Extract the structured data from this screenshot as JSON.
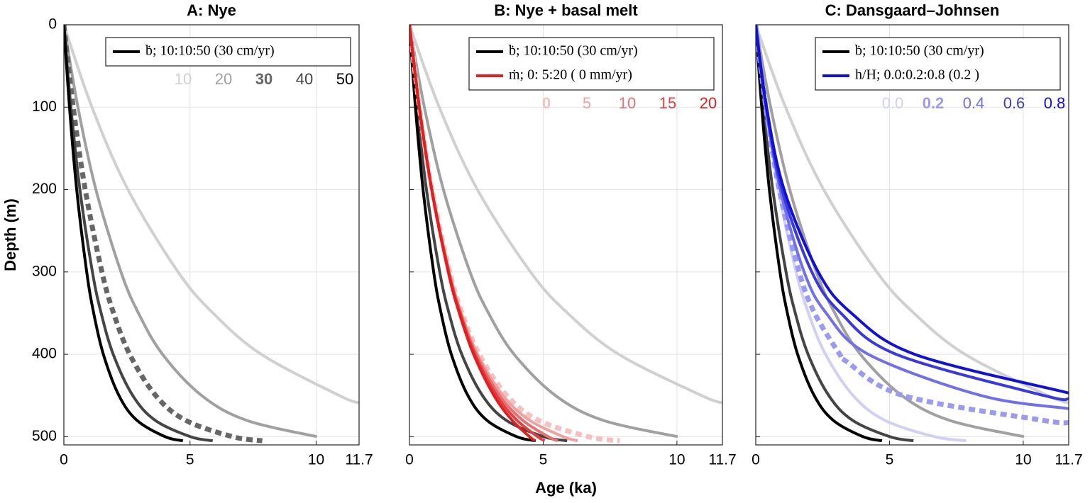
{
  "chart_data": [
    {
      "type": "line",
      "title": "A: Nye",
      "ylabel": "Depth (m)",
      "xlim": [
        0,
        11.7
      ],
      "ylim": [
        0,
        510
      ],
      "xticks": [
        0,
        5,
        10,
        11.7
      ],
      "yticks": [
        0,
        100,
        200,
        300,
        400,
        500
      ],
      "show_ytick_labels": true,
      "grid": true,
      "y_inverted": true,
      "legend": [
        {
          "label": "ḃ; 10:10:50 (30 cm/yr)",
          "color": "#000000"
        }
      ],
      "series": [
        {
          "name": "10",
          "color": "#d0d0d0",
          "dashed": false,
          "x": [
            0,
            1.113,
            2.539,
            4.525,
            5.912,
            7.823,
            10.915,
            11.7
          ],
          "values": [
            0,
            100,
            200,
            300,
            350,
            400,
            450,
            459
          ]
        },
        {
          "name": "20",
          "color": "#a0a0a0",
          "dashed": false,
          "x": [
            0,
            0.557,
            1.269,
            2.263,
            2.956,
            3.911,
            5.457,
            7.225,
            10.026
          ],
          "values": [
            0,
            100,
            200,
            300,
            350,
            400,
            450,
            480,
            500
          ]
        },
        {
          "name": "30",
          "color": "#666666",
          "dashed": true,
          "x": [
            0,
            0.371,
            0.846,
            1.508,
            1.971,
            2.608,
            3.638,
            4.816,
            6.684,
            7.863
          ],
          "values": [
            0,
            100,
            200,
            300,
            350,
            400,
            450,
            480,
            500,
            505
          ]
        },
        {
          "name": "40",
          "color": "#444444",
          "dashed": false,
          "x": [
            0,
            0.278,
            0.635,
            1.131,
            1.478,
            1.956,
            2.729,
            3.612,
            5.013,
            5.897
          ],
          "values": [
            0,
            100,
            200,
            300,
            350,
            400,
            450,
            480,
            500,
            505
          ]
        },
        {
          "name": "50",
          "color": "#000000",
          "dashed": false,
          "x": [
            0,
            0.223,
            0.508,
            0.905,
            1.182,
            1.565,
            2.183,
            2.89,
            4.01,
            4.718
          ],
          "values": [
            0,
            100,
            200,
            300,
            350,
            400,
            450,
            480,
            500,
            505
          ]
        }
      ]
    },
    {
      "type": "line",
      "title": "B: Nye + basal melt",
      "xlabel": "Age (ka)",
      "xlim": [
        0,
        11.7
      ],
      "ylim": [
        0,
        510
      ],
      "xticks": [
        0,
        5,
        10,
        11.7
      ],
      "yticks": [
        0,
        100,
        200,
        300,
        400,
        500
      ],
      "show_ytick_labels": false,
      "grid": true,
      "y_inverted": true,
      "legend": [
        {
          "label": "ḃ; 10:10:50 (30 cm/yr)",
          "color": "#000000"
        },
        {
          "label": "ṁ; 0: 5:20 ( 0 mm/yr)",
          "color": "#e02020"
        }
      ],
      "series": [
        {
          "color": "#d0d0d0",
          "dashed": false,
          "x": [
            0,
            1.113,
            2.539,
            4.525,
            5.912,
            7.823,
            10.915,
            11.7
          ],
          "values": [
            0,
            100,
            200,
            300,
            350,
            400,
            450,
            459
          ]
        },
        {
          "color": "#a0a0a0",
          "dashed": false,
          "x": [
            0,
            0.557,
            1.269,
            2.263,
            2.956,
            3.911,
            5.457,
            7.225,
            10.026
          ],
          "values": [
            0,
            100,
            200,
            300,
            350,
            400,
            450,
            480,
            500
          ]
        },
        {
          "color": "#444444",
          "dashed": false,
          "x": [
            0,
            0.278,
            0.635,
            1.131,
            1.478,
            1.956,
            2.729,
            3.612,
            5.013,
            5.897
          ],
          "values": [
            0,
            100,
            200,
            300,
            350,
            400,
            450,
            480,
            500,
            505
          ]
        },
        {
          "color": "#000000",
          "dashed": false,
          "x": [
            0,
            0.223,
            0.508,
            0.905,
            1.182,
            1.565,
            2.183,
            2.89,
            4.01,
            4.718
          ],
          "values": [
            0,
            100,
            200,
            300,
            350,
            400,
            450,
            480,
            500,
            505
          ]
        },
        {
          "name": "0",
          "color": "#f4c0c0",
          "dashed": true,
          "x": [
            0,
            0.371,
            0.846,
            1.508,
            1.971,
            2.608,
            3.638,
            4.816,
            6.684,
            7.863
          ],
          "values": [
            0,
            100,
            200,
            300,
            350,
            400,
            450,
            480,
            500,
            505
          ]
        },
        {
          "name": "5",
          "color": "#f0a0a0",
          "dashed": false,
          "x": [
            0,
            0.37,
            0.842,
            1.493,
            1.942,
            2.55,
            3.496,
            4.489,
            5.75,
            6.29
          ],
          "values": [
            0,
            100,
            200,
            300,
            350,
            400,
            450,
            480,
            500,
            505
          ]
        },
        {
          "name": "10",
          "color": "#e87070",
          "dashed": false,
          "x": [
            0,
            0.37,
            0.838,
            1.479,
            1.915,
            2.496,
            3.371,
            4.231,
            5.189,
            5.541
          ],
          "values": [
            0,
            100,
            200,
            300,
            350,
            400,
            450,
            480,
            500,
            505
          ]
        },
        {
          "name": "15",
          "color": "#e04040",
          "dashed": false,
          "x": [
            0,
            0.369,
            0.834,
            1.464,
            1.889,
            2.446,
            3.26,
            4.019,
            4.794,
            5.055
          ],
          "values": [
            0,
            100,
            200,
            300,
            350,
            400,
            450,
            480,
            500,
            505
          ]
        },
        {
          "name": "20",
          "color": "#e02020",
          "dashed": false,
          "x": [
            0,
            0.368,
            0.83,
            1.451,
            1.864,
            2.399,
            3.159,
            3.838,
            4.491,
            4.698
          ],
          "values": [
            0,
            100,
            200,
            300,
            350,
            400,
            450,
            480,
            500,
            505
          ]
        }
      ]
    },
    {
      "type": "line",
      "title": "C: Dansgaard–Johnsen",
      "xlim": [
        0,
        11.7
      ],
      "ylim": [
        0,
        510
      ],
      "xticks": [
        0,
        5,
        10,
        11.7
      ],
      "yticks": [
        0,
        100,
        200,
        300,
        400,
        500
      ],
      "show_ytick_labels": false,
      "grid": true,
      "y_inverted": true,
      "legend": [
        {
          "label": "ḃ; 10:10:50 (30 cm/yr)",
          "color": "#000000"
        },
        {
          "label": "h/H; 0.0:0.2:0.8 (0.2 )",
          "color": "#1010d8"
        }
      ],
      "series": [
        {
          "color": "#d0d0d0",
          "dashed": false,
          "x": [
            0,
            1.113,
            2.539,
            4.525,
            5.912,
            7.823,
            10.915,
            11.7
          ],
          "values": [
            0,
            100,
            200,
            300,
            350,
            400,
            450,
            459
          ]
        },
        {
          "color": "#a0a0a0",
          "dashed": false,
          "x": [
            0,
            0.557,
            1.269,
            2.263,
            2.956,
            3.911,
            5.457,
            7.225,
            10.026
          ],
          "values": [
            0,
            100,
            200,
            300,
            350,
            400,
            450,
            480,
            500
          ]
        },
        {
          "color": "#444444",
          "dashed": false,
          "x": [
            0,
            0.278,
            0.635,
            1.131,
            1.478,
            1.956,
            2.729,
            3.612,
            5.013,
            5.897
          ],
          "values": [
            0,
            100,
            200,
            300,
            350,
            400,
            450,
            480,
            500,
            505
          ]
        },
        {
          "color": "#000000",
          "dashed": false,
          "x": [
            0,
            0.223,
            0.508,
            0.905,
            1.182,
            1.565,
            2.183,
            2.89,
            4.01,
            4.718
          ],
          "values": [
            0,
            100,
            200,
            300,
            350,
            400,
            450,
            480,
            500,
            505
          ]
        },
        {
          "name": "0.0",
          "color": "#d0d0f4",
          "dashed": false,
          "x": [
            0,
            0.371,
            0.846,
            1.508,
            1.971,
            2.608,
            3.638,
            4.816,
            6.684,
            7.863
          ],
          "values": [
            0,
            100,
            200,
            300,
            350,
            400,
            450,
            480,
            500,
            505
          ]
        },
        {
          "name": "0.2",
          "color": "#9a9af0",
          "dashed": true,
          "x": [
            0,
            0.376,
            0.876,
            1.622,
            2.2,
            3.139,
            3.362,
            5.504,
            10.706,
            11.7
          ],
          "values": [
            0,
            100,
            200,
            300,
            350,
            400,
            408,
            450,
            480,
            483
          ]
        },
        {
          "name": "0.4",
          "color": "#7070e8",
          "dashed": false,
          "x": [
            0,
            0.382,
            0.916,
            1.808,
            2.633,
            4.209,
            8.413,
            11.7
          ],
          "values": [
            0,
            100,
            200,
            300,
            350,
            400,
            450,
            466
          ]
        },
        {
          "name": "0.6",
          "color": "#3a3adc",
          "dashed": false,
          "x": [
            0,
            0.391,
            0.978,
            2.096,
            3.18,
            5.249,
            10.766,
            11.7
          ],
          "values": [
            0,
            100,
            200,
            300,
            350,
            400,
            450,
            454
          ]
        },
        {
          "name": "0.8",
          "color": "#1010d8",
          "dashed": false,
          "x": [
            0,
            0.404,
            1.059,
            2.337,
            3.576,
            5.941,
            11.7
          ],
          "values": [
            0,
            100,
            200,
            300,
            350,
            400,
            447
          ]
        }
      ]
    }
  ]
}
